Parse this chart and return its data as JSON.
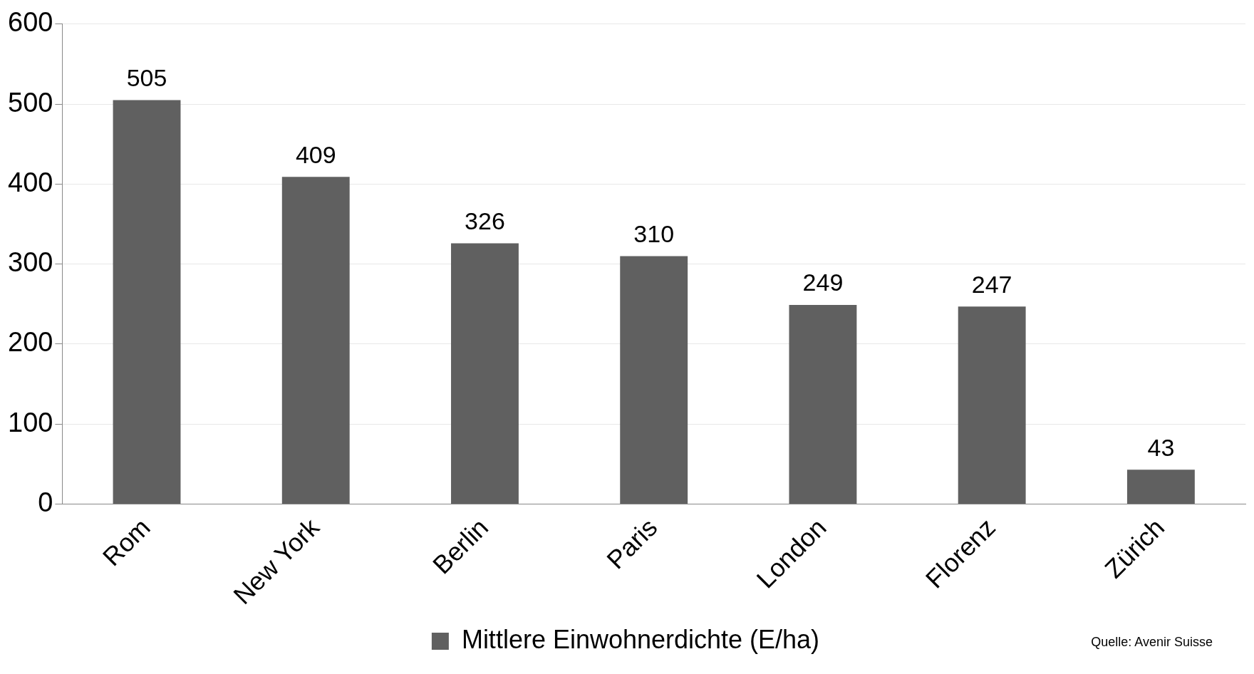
{
  "chart_data": {
    "type": "bar",
    "categories": [
      "Rom",
      "New York",
      "Berlin",
      "Paris",
      "London",
      "Florenz",
      "Zürich"
    ],
    "series": [
      {
        "name": "Mittlere Einwohnerdichte (E/ha)",
        "color": "#606060",
        "values": [
          505,
          409,
          326,
          310,
          249,
          247,
          43
        ]
      }
    ],
    "ylim": [
      0,
      600
    ],
    "yticks": [
      0,
      100,
      200,
      300,
      400,
      500,
      600
    ],
    "grid": "y",
    "legend": "bottom",
    "data_labels": true,
    "annotations": [
      "Quelle: Avenir Suisse"
    ]
  }
}
